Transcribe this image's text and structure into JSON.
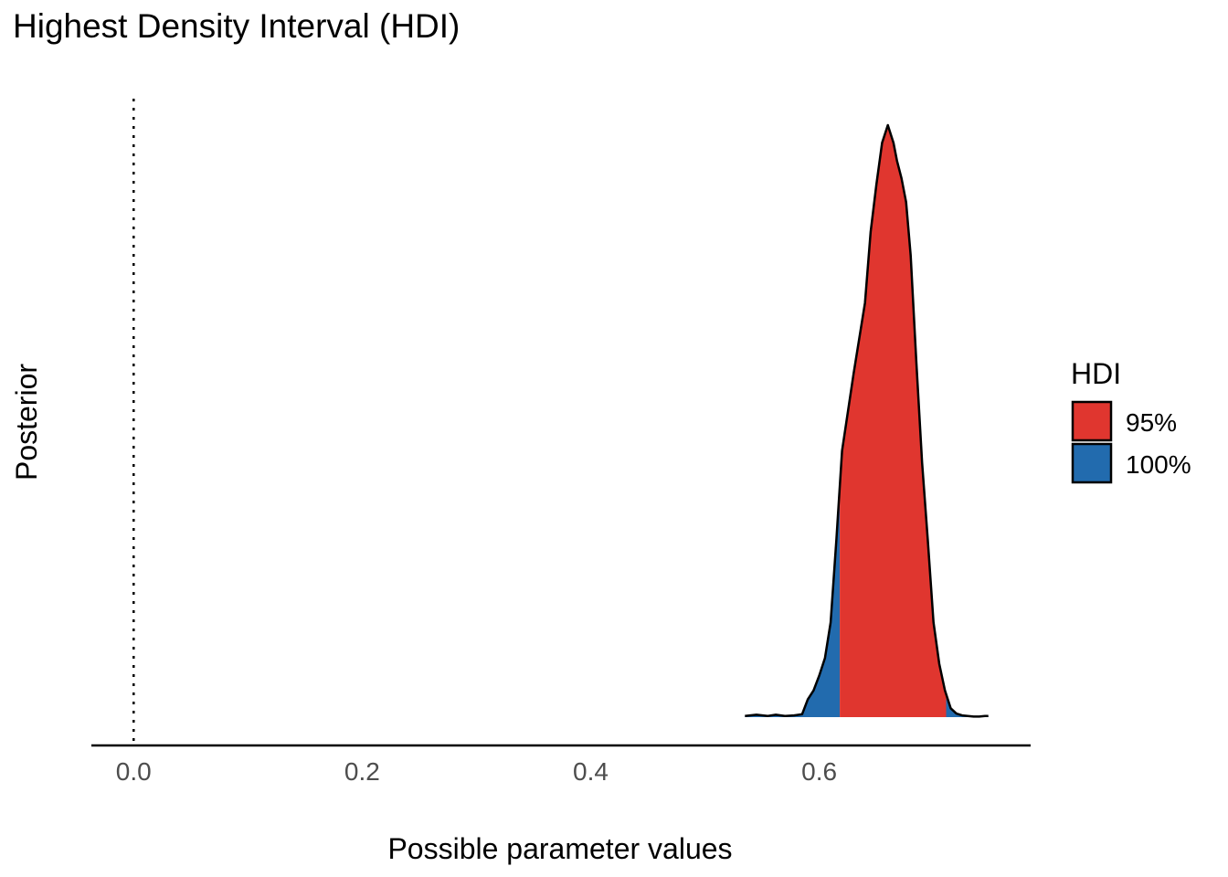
{
  "chart_data": {
    "type": "area",
    "title": "Highest Density Interval (HDI)",
    "xlabel": "Possible parameter values",
    "ylabel": "Posterior",
    "xlim": [
      -0.037,
      0.785
    ],
    "ylim": [
      0,
      1
    ],
    "x_ticks": [
      "0.0",
      "0.2",
      "0.4",
      "0.6"
    ],
    "x_tick_values": [
      0.0,
      0.2,
      0.4,
      0.6
    ],
    "reference_line": {
      "x": 0.0,
      "style": "dotted"
    },
    "grid": false,
    "density": {
      "x": [
        0.535,
        0.545,
        0.555,
        0.562,
        0.57,
        0.578,
        0.585,
        0.59,
        0.595,
        0.6,
        0.605,
        0.61,
        0.615,
        0.62,
        0.63,
        0.64,
        0.645,
        0.65,
        0.655,
        0.66,
        0.665,
        0.668,
        0.672,
        0.676,
        0.68,
        0.685,
        0.69,
        0.695,
        0.7,
        0.705,
        0.71,
        0.715,
        0.72,
        0.725,
        0.73,
        0.735,
        0.74,
        0.745,
        0.748
      ],
      "y": [
        0.002,
        0.004,
        0.002,
        0.004,
        0.002,
        0.003,
        0.005,
        0.03,
        0.045,
        0.07,
        0.1,
        0.16,
        0.3,
        0.45,
        0.58,
        0.7,
        0.82,
        0.9,
        0.97,
        1.0,
        0.97,
        0.94,
        0.91,
        0.87,
        0.78,
        0.6,
        0.43,
        0.3,
        0.16,
        0.09,
        0.045,
        0.015,
        0.006,
        0.003,
        0.002,
        0.001,
        0.001,
        0.002,
        0.002
      ]
    },
    "hdi_95": [
      0.618,
      0.711
    ],
    "legend": {
      "title": "HDI",
      "placement": "right",
      "entries": [
        {
          "label": "95%",
          "color": "#E0362F"
        },
        {
          "label": "100%",
          "color": "#226BAE"
        }
      ]
    }
  }
}
